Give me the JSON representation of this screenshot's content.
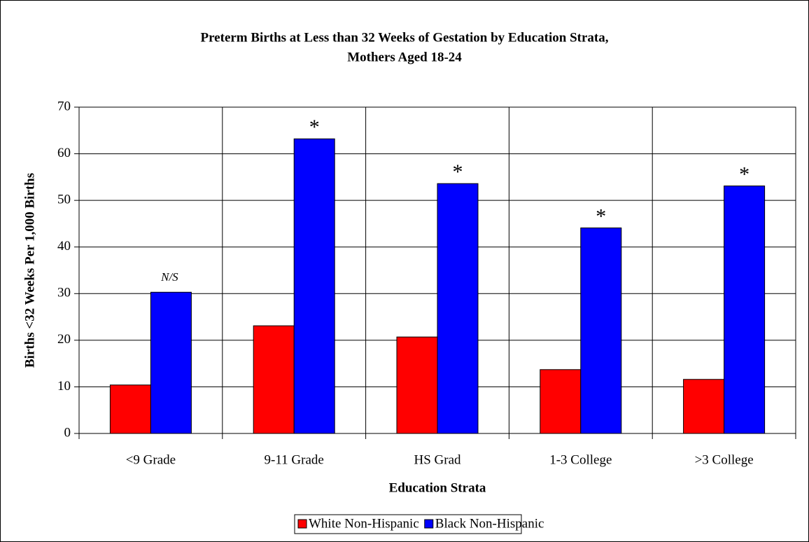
{
  "chart_data": {
    "type": "bar",
    "title": [
      "Preterm Births at Less than 32 Weeks of Gestation by Education Strata,",
      "Mothers Aged 18-24"
    ],
    "x_label": "Education Strata",
    "y_label": "Births <32 Weeks Per 1,000 Births",
    "categories": [
      "<9 Grade",
      "9-11 Grade",
      "HS Grad",
      "1-3 College",
      ">3 College"
    ],
    "series": [
      {
        "name": "White Non-Hispanic",
        "color": "#ff0000",
        "values": [
          10.4,
          23.1,
          20.7,
          13.7,
          11.6
        ]
      },
      {
        "name": "Black Non-Hispanic",
        "color": "#0000ff",
        "values": [
          30.3,
          63.2,
          53.6,
          44.1,
          53.1
        ]
      }
    ],
    "annotations": [
      "N/S",
      "*",
      "*",
      "*",
      "*"
    ],
    "ylim": [
      0,
      70
    ],
    "yticks": [
      0,
      10,
      20,
      30,
      40,
      50,
      60,
      70
    ],
    "grid": true,
    "legend": "bottom"
  }
}
